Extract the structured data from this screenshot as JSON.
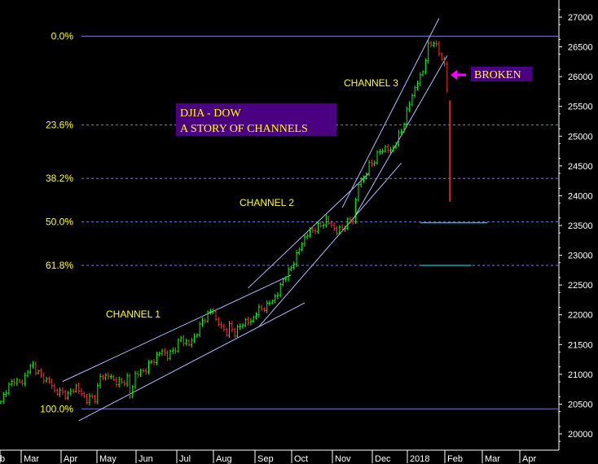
{
  "chart_data": {
    "type": "candlestick",
    "title_lines": [
      "DJIA - DOW",
      "A STORY OF CHANNELS"
    ],
    "y_axis": {
      "ticks": [
        "20000",
        "20500",
        "21000",
        "21500",
        "22000",
        "22500",
        "23000",
        "23500",
        "24000",
        "24500",
        "25000",
        "25500",
        "26000",
        "26500",
        "27000"
      ],
      "ylim": [
        19900,
        27150
      ]
    },
    "x_axis": {
      "ticks": [
        "b",
        "Mar",
        "Apr",
        "May",
        "Jun",
        "Jul",
        "Aug",
        "Sep",
        "Oct",
        "Nov",
        "Dec",
        "2018",
        "Feb",
        "Mar",
        "Apr"
      ]
    },
    "fib_levels": [
      {
        "label": "0.0%",
        "value": 26680
      },
      {
        "label": "23.6%",
        "value": 25190
      },
      {
        "label": "38.2%",
        "value": 24290
      },
      {
        "label": "50.0%",
        "value": 23560
      },
      {
        "label": "61.8%",
        "value": 22830
      },
      {
        "label": "100.0%",
        "value": 20420
      }
    ],
    "channel_labels": [
      "CHANNEL 1",
      "CHANNEL 2",
      "CHANNEL 3"
    ],
    "annotation": "BROKEN",
    "price_path": [
      [
        0,
        20520
      ],
      [
        2,
        20750
      ],
      [
        5,
        20900
      ],
      [
        8,
        20850
      ],
      [
        10,
        21080
      ],
      [
        12,
        21150
      ],
      [
        15,
        20960
      ],
      [
        18,
        20880
      ],
      [
        20,
        20720
      ],
      [
        22,
        20700
      ],
      [
        25,
        20650
      ],
      [
        28,
        20800
      ],
      [
        30,
        20660
      ],
      [
        32,
        20580
      ],
      [
        34,
        20610
      ],
      [
        35,
        20600
      ],
      [
        37,
        20950
      ],
      [
        40,
        20980
      ],
      [
        42,
        20900
      ],
      [
        45,
        20850
      ],
      [
        47,
        20940
      ],
      [
        48,
        20620
      ],
      [
        50,
        21000
      ],
      [
        53,
        21050
      ],
      [
        55,
        21150
      ],
      [
        57,
        21250
      ],
      [
        60,
        21400
      ],
      [
        62,
        21300
      ],
      [
        65,
        21450
      ],
      [
        67,
        21600
      ],
      [
        70,
        21500
      ],
      [
        73,
        21700
      ],
      [
        75,
        21900
      ],
      [
        77,
        22000
      ],
      [
        79,
        22100
      ],
      [
        80,
        21900
      ],
      [
        82,
        21800
      ],
      [
        84,
        21700
      ],
      [
        85,
        21800
      ],
      [
        87,
        21700
      ],
      [
        89,
        21800
      ],
      [
        91,
        21900
      ],
      [
        93,
        21870
      ],
      [
        95,
        22050
      ],
      [
        97,
        22100
      ],
      [
        99,
        22150
      ],
      [
        101,
        22250
      ],
      [
        103,
        22350
      ],
      [
        105,
        22600
      ],
      [
        107,
        22700
      ],
      [
        109,
        22900
      ],
      [
        111,
        23100
      ],
      [
        113,
        23300
      ],
      [
        115,
        23400
      ],
      [
        117,
        23450
      ],
      [
        119,
        23500
      ],
      [
        121,
        23600
      ],
      [
        123,
        23500
      ],
      [
        125,
        23400
      ],
      [
        127,
        23450
      ],
      [
        129,
        23550
      ],
      [
        131,
        23600
      ],
      [
        133,
        24200
      ],
      [
        135,
        24300
      ],
      [
        137,
        24500
      ],
      [
        139,
        24600
      ],
      [
        141,
        24750
      ],
      [
        143,
        24800
      ],
      [
        145,
        24750
      ],
      [
        147,
        24900
      ],
      [
        149,
        25100
      ],
      [
        151,
        25400
      ],
      [
        153,
        25700
      ],
      [
        155,
        25900
      ],
      [
        157,
        26100
      ],
      [
        159,
        26500
      ],
      [
        161,
        26600
      ],
      [
        163,
        26400
      ],
      [
        165,
        26200
      ],
      [
        166,
        25800
      ]
    ],
    "final_drop": {
      "from": 25600,
      "to": 23900
    },
    "channels": [
      {
        "name": "CHANNEL 1 upper",
        "from": [
          23,
          20880
        ],
        "to": [
          108,
          22670
        ]
      },
      {
        "name": "CHANNEL 1 lower",
        "from": [
          29,
          20220
        ],
        "to": [
          113,
          22200
        ]
      },
      {
        "name": "CHANNEL 2 upper",
        "from": [
          92,
          22450
        ],
        "to": [
          137,
          24380
        ]
      },
      {
        "name": "CHANNEL 2 lower",
        "from": [
          96,
          21800
        ],
        "to": [
          149,
          24550
        ]
      },
      {
        "name": "CHANNEL 3 upper",
        "from": [
          127,
          23800
        ],
        "to": [
          163,
          26980
        ]
      },
      {
        "name": "CHANNEL 3 lower",
        "from": [
          131,
          23600
        ],
        "to": [
          166,
          26350
        ]
      }
    ],
    "support_lines": [
      {
        "value": 23545,
        "from": 156,
        "to": 181
      },
      {
        "value": 22830,
        "from": 156,
        "to": 175
      }
    ]
  }
}
